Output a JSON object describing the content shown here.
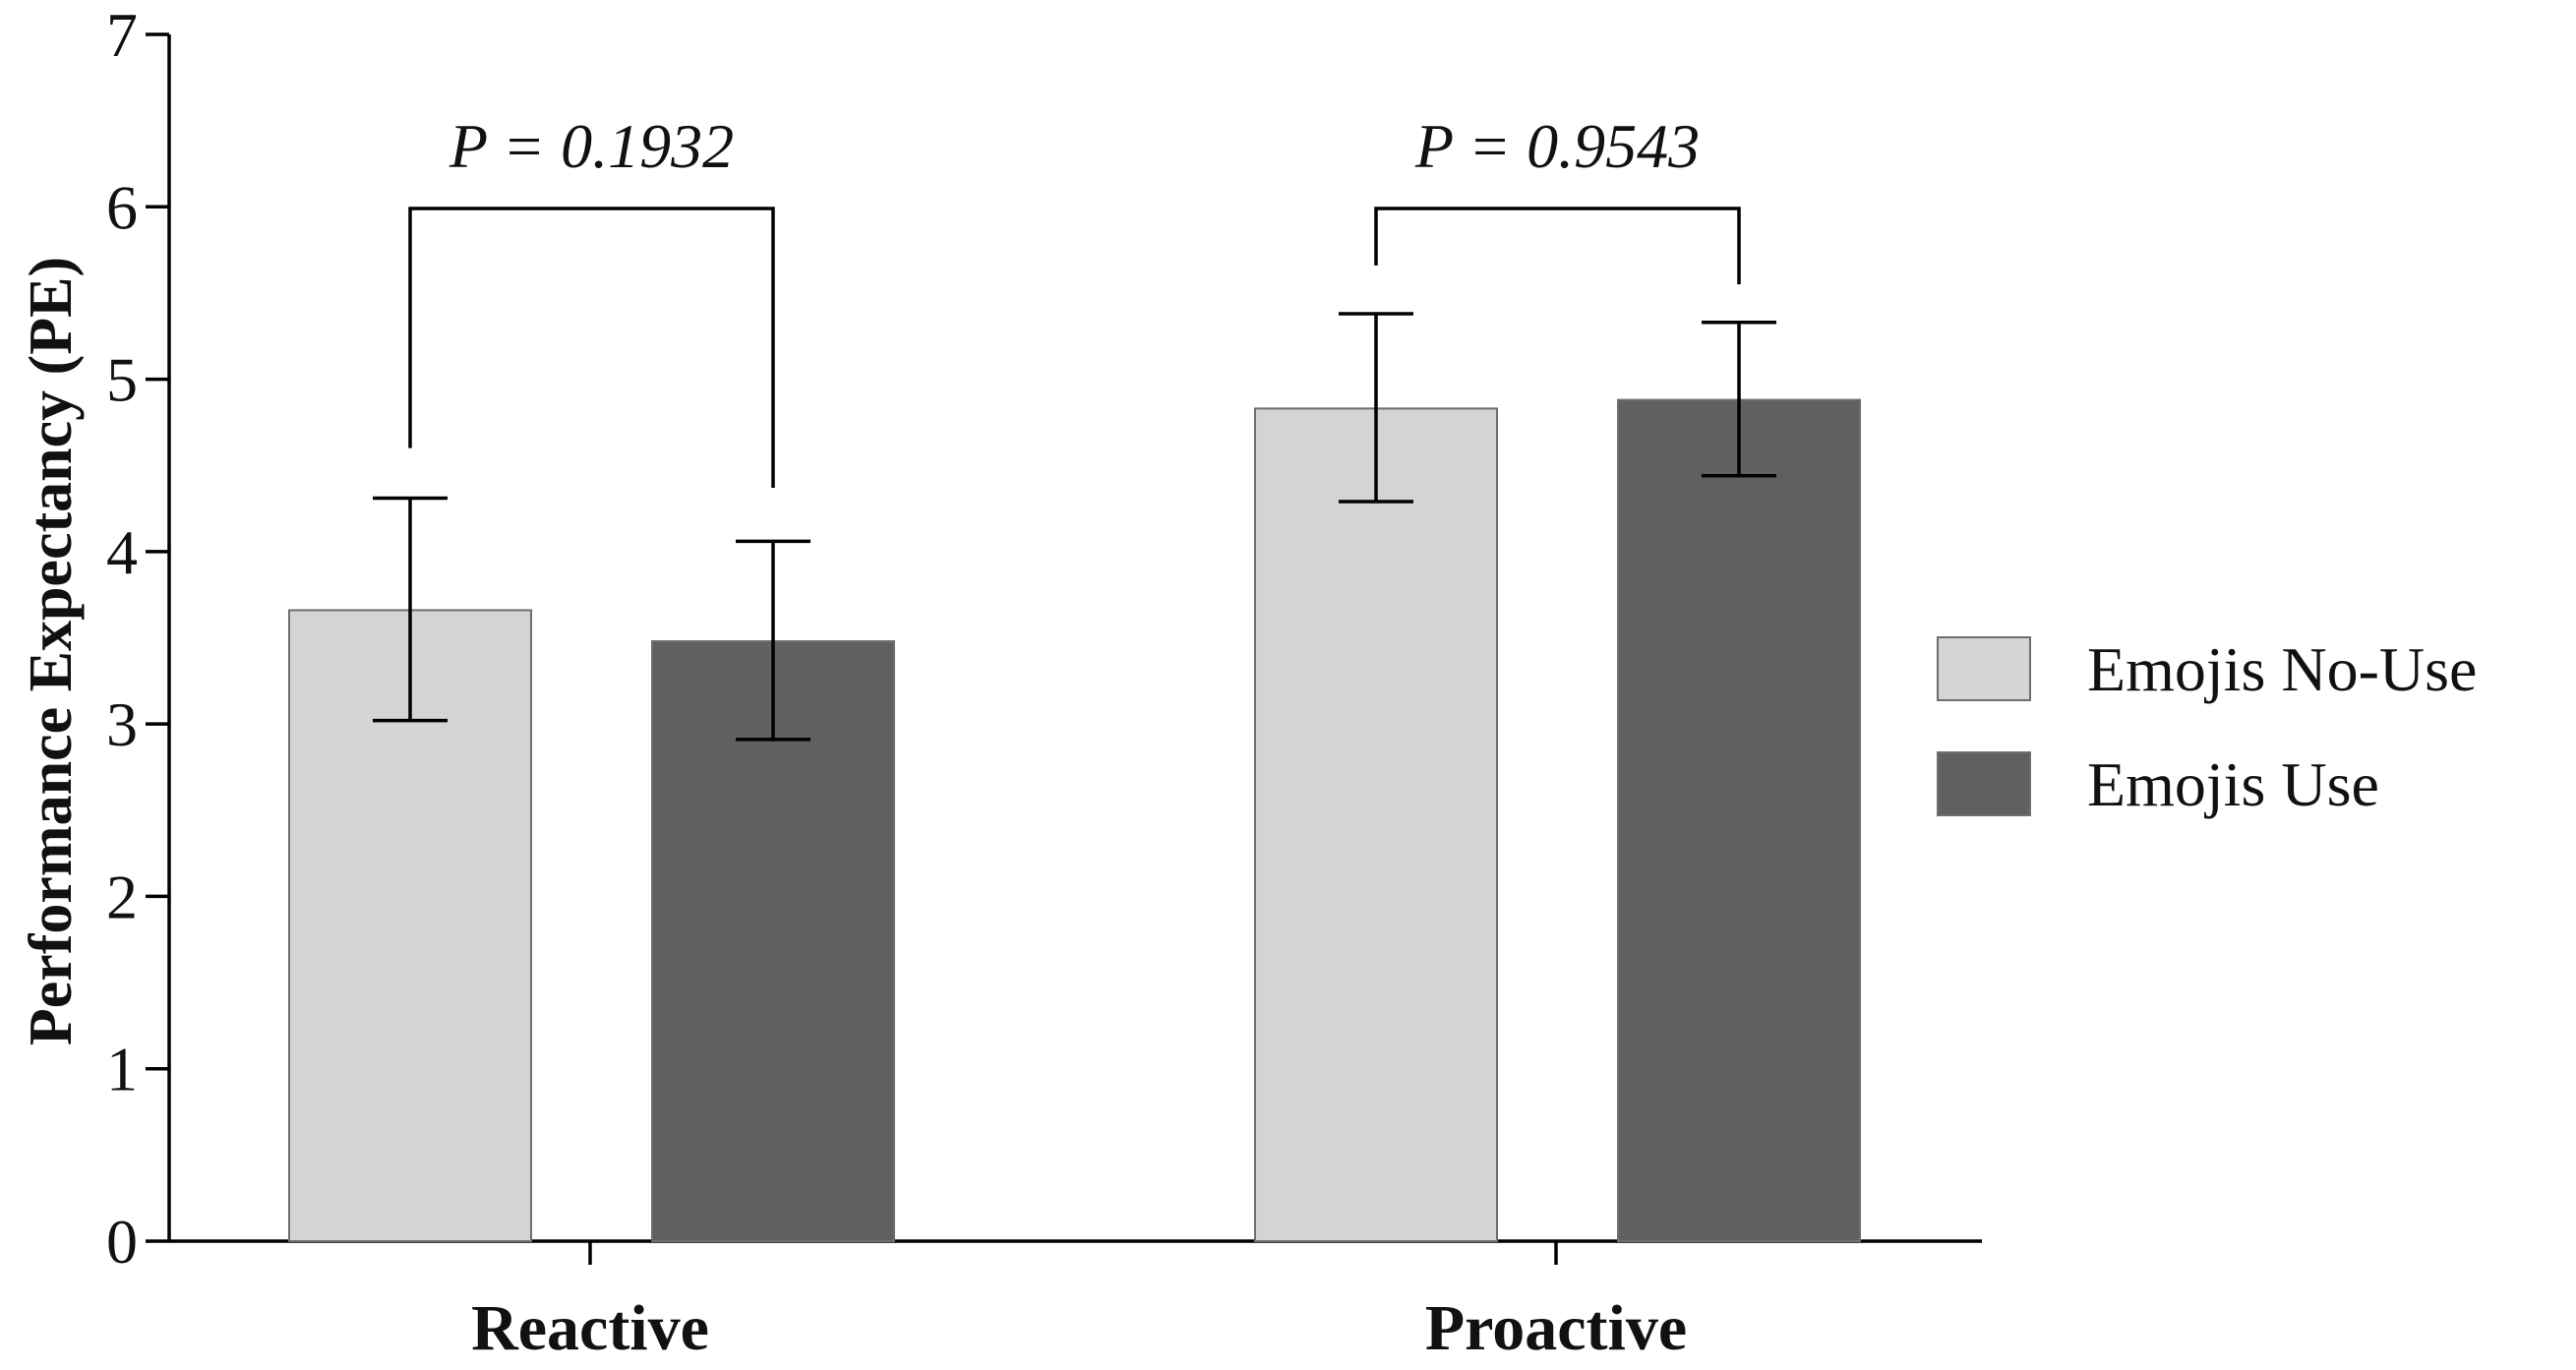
{
  "chart_data": {
    "type": "bar",
    "title": "",
    "xlabel": "",
    "ylabel": "Performance Expectancy (PE)",
    "ylim": [
      0,
      7
    ],
    "yticks": [
      0,
      1,
      2,
      3,
      4,
      5,
      6,
      7
    ],
    "categories": [
      "Reactive",
      "Proactive"
    ],
    "series": [
      {
        "name": "Emojis No-Use",
        "color": "#d4d4d4",
        "values": [
          3.66,
          4.83
        ],
        "error_low": [
          3.02,
          4.29
        ],
        "error_high": [
          4.31,
          5.38
        ]
      },
      {
        "name": "Emojis Use",
        "color": "#606060",
        "values": [
          3.48,
          4.88
        ],
        "error_low": [
          2.91,
          4.44
        ],
        "error_high": [
          4.06,
          5.33
        ]
      }
    ],
    "annotations": [
      {
        "category": "Reactive",
        "text": "P = 0.1932",
        "bracket_y": 5.99,
        "left_leg_bottom": 4.6,
        "right_leg_bottom": 4.37
      },
      {
        "category": "Proactive",
        "text": "P = 0.9543",
        "bracket_y": 5.99,
        "left_leg_bottom": 5.66,
        "right_leg_bottom": 5.55
      }
    ],
    "legend_position": "right",
    "grid": false
  }
}
